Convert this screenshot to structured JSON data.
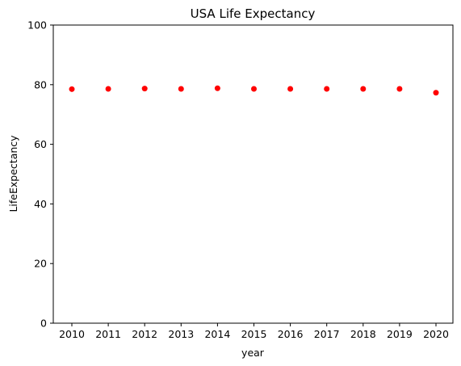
{
  "chart_data": {
    "type": "scatter",
    "title": "USA Life Expectancy",
    "xlabel": "year",
    "ylabel": "LifeExpectancy",
    "x": [
      2010,
      2011,
      2012,
      2013,
      2014,
      2015,
      2016,
      2017,
      2018,
      2019,
      2020
    ],
    "y": [
      78.5,
      78.6,
      78.7,
      78.6,
      78.8,
      78.6,
      78.6,
      78.6,
      78.6,
      78.6,
      77.3
    ],
    "ylim": [
      0,
      100
    ],
    "yticks": [
      0,
      20,
      40,
      60,
      80,
      100
    ],
    "xticks": [
      "2010",
      "2011",
      "2012",
      "2013",
      "2014",
      "2015",
      "2016",
      "2017",
      "2018",
      "2019",
      "2020"
    ],
    "marker_color": "#ff0000",
    "grid": false,
    "legend": "none"
  }
}
